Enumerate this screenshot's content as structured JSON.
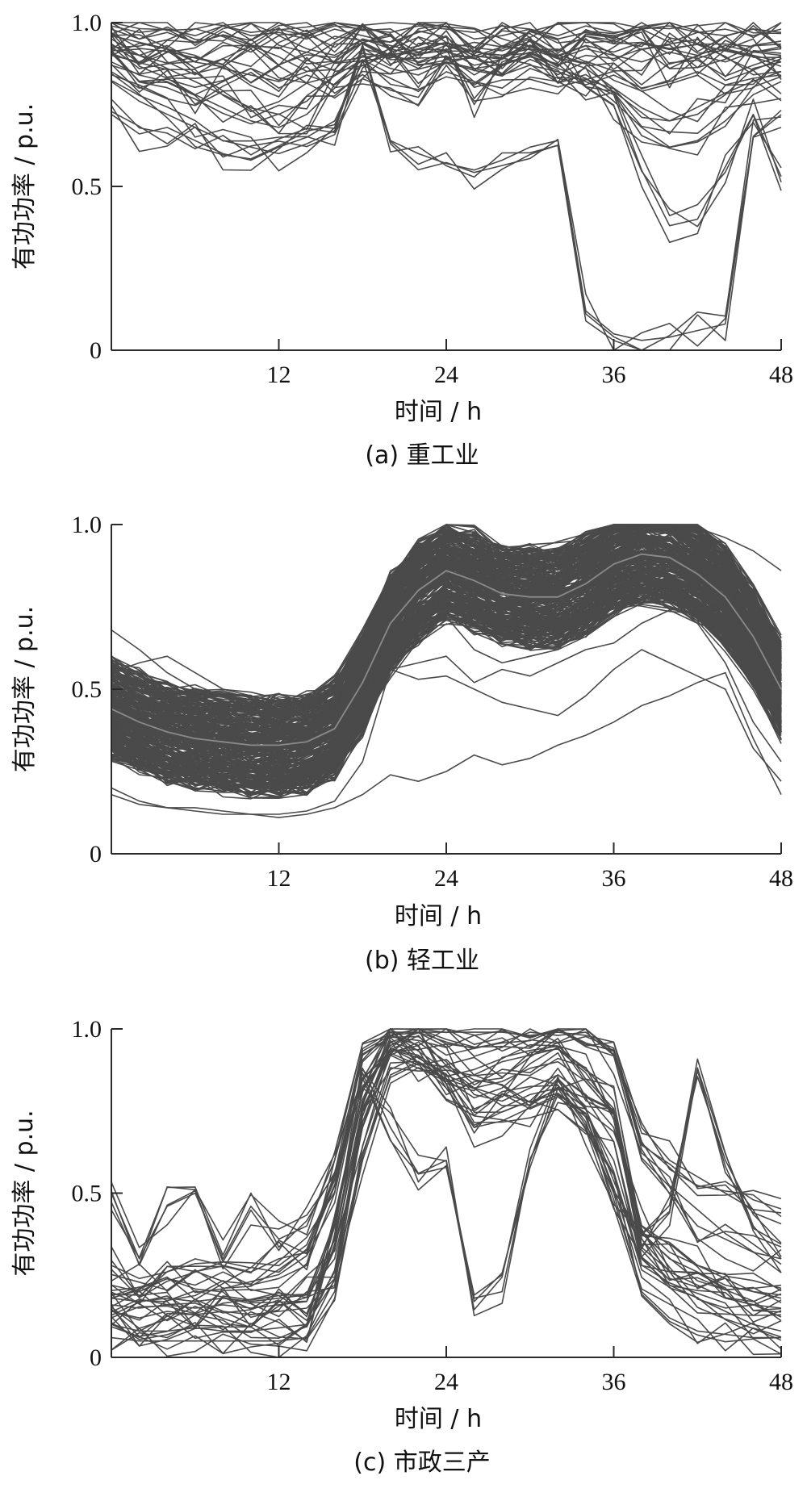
{
  "chart_data": [
    {
      "type": "line",
      "panel_label": "(a)  重工业",
      "xlabel": "时间 / h",
      "ylabel": "有功功率 / p.u.",
      "xlim": [
        0,
        48
      ],
      "ylim": [
        0,
        1.0
      ],
      "x_ticks": [
        12,
        24,
        36,
        48
      ],
      "x_tick_labels": [
        "12",
        "24",
        "36",
        "48"
      ],
      "y_ticks": [
        0,
        0.5,
        1.0
      ],
      "y_tick_labels": [
        "0",
        "0.5",
        "1.0"
      ],
      "grid": false,
      "line_color": "#4a4a4a",
      "series_count": 40,
      "x": [
        0,
        2,
        4,
        6,
        8,
        10,
        12,
        14,
        16,
        18,
        20,
        22,
        24,
        26,
        28,
        30,
        32,
        34,
        36,
        38,
        40,
        42,
        44,
        46,
        48
      ],
      "series": [
        {
          "values": [
            0.95,
            0.9,
            0.93,
            0.88,
            0.94,
            0.91,
            0.96,
            0.92,
            0.9,
            0.95,
            0.93,
            0.91,
            0.94,
            0.89,
            0.92,
            0.95,
            0.9,
            0.93,
            0.91,
            0.94,
            0.92,
            0.9,
            0.93,
            0.91,
            0.92
          ]
        },
        {
          "values": [
            0.98,
            0.95,
            0.97,
            0.94,
            0.99,
            0.96,
            0.97,
            0.95,
            0.98,
            0.96,
            0.94,
            0.97,
            0.99,
            0.95,
            0.96,
            0.98,
            0.95,
            0.97,
            0.96,
            0.98,
            0.94,
            0.97,
            0.96,
            0.98,
            0.97
          ]
        },
        {
          "values": [
            0.85,
            0.8,
            0.83,
            0.78,
            0.82,
            0.86,
            0.8,
            0.84,
            0.81,
            0.87,
            0.83,
            0.79,
            0.85,
            0.82,
            0.8,
            0.86,
            0.83,
            0.81,
            0.84,
            0.8,
            0.82,
            0.85,
            0.81,
            0.83,
            0.84
          ]
        },
        {
          "values": [
            0.9,
            0.88,
            0.92,
            0.86,
            0.89,
            0.93,
            0.87,
            0.91,
            0.88,
            0.94,
            0.9,
            0.86,
            0.92,
            0.75,
            0.88,
            0.91,
            0.87,
            0.9,
            0.89,
            0.92,
            0.86,
            0.9,
            0.88,
            0.91,
            0.9
          ]
        },
        {
          "values": [
            0.72,
            0.66,
            0.68,
            0.64,
            0.6,
            0.58,
            0.62,
            0.65,
            0.7,
            0.88,
            0.9,
            0.92,
            0.94,
            0.91,
            0.9,
            0.93,
            0.89,
            0.92,
            0.9,
            0.88,
            0.91,
            0.89,
            0.92,
            0.9,
            0.88
          ]
        },
        {
          "values": [
            0.82,
            0.76,
            0.72,
            0.68,
            0.64,
            0.62,
            0.6,
            0.63,
            0.67,
            0.92,
            0.64,
            0.6,
            0.57,
            0.55,
            0.58,
            0.62,
            0.64,
            0.12,
            0.05,
            0.03,
            0.04,
            0.06,
            0.08,
            0.65,
            0.68
          ]
        },
        {
          "values": [
            0.88,
            0.84,
            0.82,
            0.78,
            0.74,
            0.7,
            0.68,
            0.72,
            0.8,
            0.9,
            0.86,
            0.84,
            0.88,
            0.86,
            0.84,
            0.87,
            0.85,
            0.82,
            0.78,
            0.55,
            0.38,
            0.4,
            0.56,
            0.72,
            0.53
          ]
        },
        {
          "values": [
            0.93,
            0.9,
            0.86,
            0.82,
            0.78,
            0.74,
            0.72,
            0.76,
            0.84,
            0.92,
            0.9,
            0.88,
            0.91,
            0.89,
            0.87,
            0.9,
            0.86,
            0.83,
            0.76,
            0.68,
            0.62,
            0.64,
            0.7,
            0.78,
            0.82
          ]
        },
        {
          "values": [
            0.96,
            0.94,
            0.92,
            0.9,
            0.86,
            0.84,
            0.82,
            0.85,
            0.88,
            0.95,
            0.92,
            0.9,
            0.93,
            0.91,
            0.9,
            0.92,
            0.89,
            0.86,
            0.8,
            0.74,
            0.7,
            0.72,
            0.78,
            0.86,
            0.88
          ]
        },
        {
          "values": [
            0.99,
            0.97,
            0.98,
            0.96,
            0.99,
            0.97,
            0.98,
            0.96,
            0.99,
            0.98,
            0.97,
            0.99,
            0.98,
            0.97,
            0.99,
            0.98,
            0.96,
            0.99,
            0.97,
            0.98,
            0.99,
            0.97,
            0.98,
            0.96,
            0.98
          ]
        }
      ]
    },
    {
      "type": "line",
      "panel_label": "(b)  轻工业",
      "xlabel": "时间 / h",
      "ylabel": "有功功率 / p.u.",
      "xlim": [
        0,
        48
      ],
      "ylim": [
        0,
        1.0
      ],
      "x_ticks": [
        12,
        24,
        36,
        48
      ],
      "x_tick_labels": [
        "12",
        "24",
        "36",
        "48"
      ],
      "y_ticks": [
        0,
        0.5,
        1.0
      ],
      "y_tick_labels": [
        "0",
        "0.5",
        "1.0"
      ],
      "grid": false,
      "line_color": "#4a4a4a",
      "mean_color": "#8a8a8a",
      "series_count": 300,
      "x": [
        0,
        2,
        4,
        6,
        8,
        10,
        12,
        14,
        16,
        18,
        20,
        22,
        24,
        26,
        28,
        30,
        32,
        34,
        36,
        38,
        40,
        42,
        44,
        46,
        48
      ],
      "mean": [
        0.44,
        0.4,
        0.37,
        0.35,
        0.34,
        0.33,
        0.33,
        0.34,
        0.38,
        0.52,
        0.7,
        0.8,
        0.86,
        0.83,
        0.79,
        0.78,
        0.78,
        0.82,
        0.88,
        0.91,
        0.9,
        0.85,
        0.78,
        0.66,
        0.5
      ],
      "band_width": 0.14,
      "outliers": [
        {
          "values": [
            0.2,
            0.16,
            0.14,
            0.13,
            0.12,
            0.12,
            0.11,
            0.12,
            0.14,
            0.18,
            0.24,
            0.22,
            0.25,
            0.3,
            0.27,
            0.29,
            0.33,
            0.36,
            0.4,
            0.45,
            0.48,
            0.52,
            0.55,
            0.35,
            0.18
          ]
        },
        {
          "values": [
            0.3,
            0.26,
            0.24,
            0.22,
            0.21,
            0.2,
            0.2,
            0.22,
            0.26,
            0.5,
            0.56,
            0.53,
            0.54,
            0.5,
            0.46,
            0.44,
            0.42,
            0.48,
            0.56,
            0.62,
            0.58,
            0.54,
            0.5,
            0.32,
            0.22
          ]
        },
        {
          "values": [
            0.55,
            0.58,
            0.6,
            0.55,
            0.5,
            0.48,
            0.44,
            0.45,
            0.5,
            0.6,
            0.68,
            0.7,
            0.72,
            0.62,
            0.58,
            0.6,
            0.62,
            0.66,
            0.72,
            0.76,
            0.78,
            0.74,
            0.7,
            0.6,
            0.4
          ]
        },
        {
          "values": [
            0.18,
            0.15,
            0.14,
            0.14,
            0.13,
            0.12,
            0.12,
            0.13,
            0.16,
            0.28,
            0.56,
            0.58,
            0.6,
            0.52,
            0.56,
            0.54,
            0.58,
            0.62,
            0.64,
            0.7,
            0.74,
            0.7,
            0.58,
            0.4,
            0.28
          ]
        },
        {
          "values": [
            0.68,
            0.62,
            0.55,
            0.5,
            0.46,
            0.44,
            0.42,
            0.44,
            0.5,
            0.68,
            0.82,
            0.9,
            0.95,
            0.92,
            0.86,
            0.84,
            0.88,
            0.92,
            0.96,
            0.99,
            0.99,
            0.99,
            0.96,
            0.92,
            0.86
          ]
        }
      ]
    },
    {
      "type": "line",
      "panel_label": "(c)  市政三产",
      "xlabel": "时间 / h",
      "ylabel": "有功功率 / p.u.",
      "xlim": [
        0,
        48
      ],
      "ylim": [
        0,
        1.0
      ],
      "x_ticks": [
        12,
        24,
        36,
        48
      ],
      "x_tick_labels": [
        "12",
        "24",
        "36",
        "48"
      ],
      "y_ticks": [
        0,
        0.5,
        1.0
      ],
      "y_tick_labels": [
        "0",
        "0.5",
        "1.0"
      ],
      "grid": false,
      "line_color": "#4a4a4a",
      "series_count": 40,
      "x": [
        0,
        2,
        4,
        6,
        8,
        10,
        12,
        14,
        16,
        18,
        20,
        22,
        24,
        26,
        28,
        30,
        32,
        34,
        36,
        38,
        40,
        42,
        44,
        46,
        48
      ],
      "series": [
        {
          "values": [
            0.18,
            0.17,
            0.18,
            0.17,
            0.18,
            0.17,
            0.18,
            0.19,
            0.3,
            0.7,
            0.92,
            0.96,
            0.9,
            0.8,
            0.78,
            0.82,
            0.86,
            0.8,
            0.7,
            0.4,
            0.32,
            0.28,
            0.24,
            0.2,
            0.18
          ]
        },
        {
          "values": [
            0.1,
            0.08,
            0.08,
            0.09,
            0.08,
            0.08,
            0.09,
            0.1,
            0.4,
            0.85,
            0.98,
            0.95,
            0.82,
            0.7,
            0.72,
            0.76,
            0.8,
            0.74,
            0.6,
            0.3,
            0.22,
            0.18,
            0.14,
            0.1,
            0.08
          ]
        },
        {
          "values": [
            0.5,
            0.3,
            0.46,
            0.5,
            0.3,
            0.46,
            0.36,
            0.4,
            0.6,
            0.9,
            0.98,
            0.99,
            0.99,
            0.99,
            0.99,
            0.98,
            0.99,
            0.98,
            0.96,
            0.7,
            0.6,
            0.55,
            0.5,
            0.45,
            0.44
          ]
        },
        {
          "values": [
            0.22,
            0.2,
            0.24,
            0.22,
            0.26,
            0.22,
            0.24,
            0.28,
            0.5,
            0.88,
            0.7,
            0.56,
            0.6,
            0.18,
            0.2,
            0.6,
            0.8,
            0.7,
            0.5,
            0.34,
            0.44,
            0.88,
            0.62,
            0.4,
            0.3
          ]
        },
        {
          "values": [
            0.14,
            0.12,
            0.14,
            0.13,
            0.14,
            0.13,
            0.14,
            0.15,
            0.24,
            0.76,
            0.92,
            0.88,
            0.84,
            0.86,
            0.9,
            0.92,
            0.94,
            0.88,
            0.78,
            0.36,
            0.26,
            0.22,
            0.18,
            0.16,
            0.15
          ]
        },
        {
          "values": [
            0.06,
            0.05,
            0.05,
            0.05,
            0.05,
            0.05,
            0.05,
            0.06,
            0.2,
            0.6,
            0.86,
            0.9,
            0.82,
            0.7,
            0.76,
            0.8,
            0.82,
            0.76,
            0.5,
            0.2,
            0.12,
            0.08,
            0.07,
            0.06,
            0.06
          ]
        },
        {
          "values": [
            0.28,
            0.24,
            0.26,
            0.3,
            0.28,
            0.26,
            0.3,
            0.32,
            0.56,
            0.94,
            0.99,
            0.99,
            0.96,
            0.94,
            0.96,
            0.99,
            0.98,
            0.99,
            0.92,
            0.6,
            0.5,
            0.4,
            0.36,
            0.32,
            0.3
          ]
        },
        {
          "values": [
            0.16,
            0.15,
            0.16,
            0.15,
            0.16,
            0.15,
            0.16,
            0.17,
            0.36,
            0.82,
            0.94,
            0.92,
            0.86,
            0.82,
            0.84,
            0.88,
            0.9,
            0.84,
            0.74,
            0.38,
            0.3,
            0.26,
            0.22,
            0.2,
            0.19
          ]
        }
      ]
    }
  ]
}
